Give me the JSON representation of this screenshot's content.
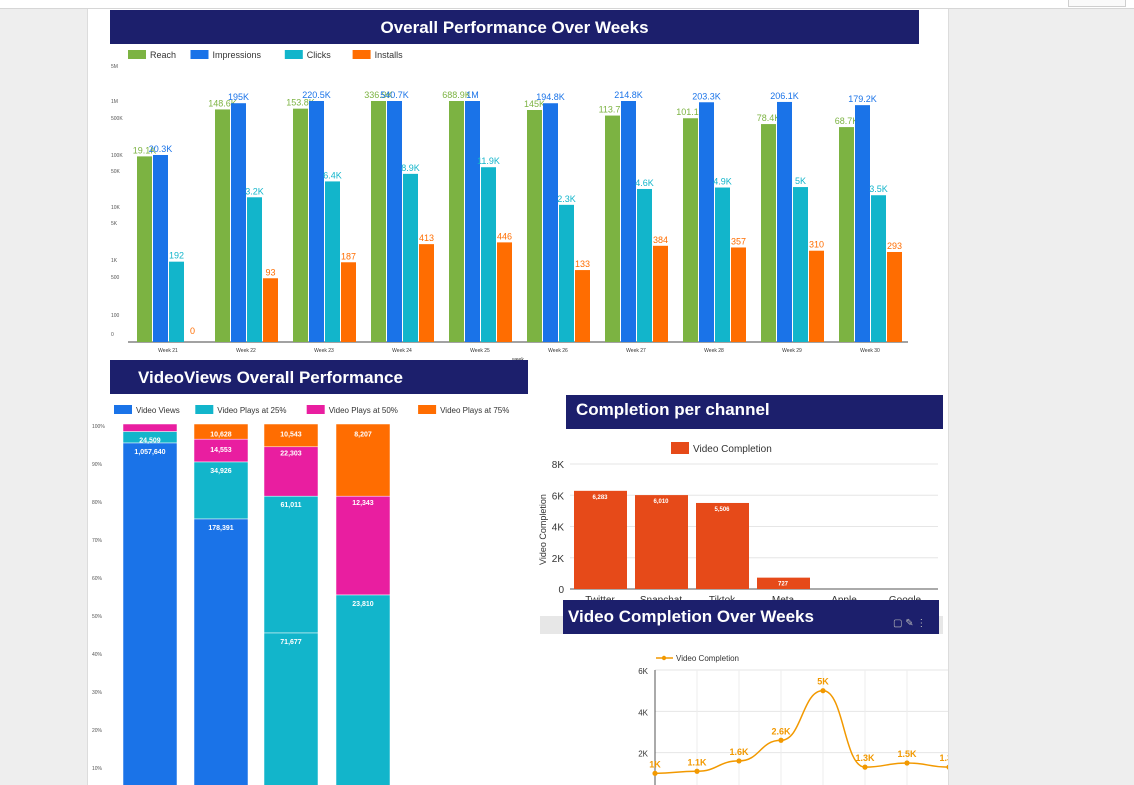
{
  "colors": {
    "header_bg": "#1c1f6c",
    "reach": "#7cb342",
    "impressions": "#1a73e8",
    "clicks": "#12b5cb",
    "installs": "#ff6d01",
    "views": "#1a73e8",
    "p25": "#12b5cb",
    "p50": "#e91ea0",
    "p75": "#ff6d01",
    "completion_bar": "#e64a19",
    "line": "#f29900"
  },
  "chart_data": [
    {
      "type": "bar",
      "title": "Overall Performance Over Weeks",
      "xlabel": "week",
      "scale": "log",
      "y_ticks": [
        "5M",
        "1M",
        "500K",
        "100K",
        "50K",
        "10K",
        "5K",
        "1K",
        "500",
        "100",
        "0"
      ],
      "categories": [
        "Week 21",
        "Week 22",
        "Week 23",
        "Week 24",
        "Week 25",
        "Week 26",
        "Week 27",
        "Week 28",
        "Week 29",
        "Week 30"
      ],
      "series": [
        {
          "name": "Reach",
          "values": [
            19100,
            148600,
            153800,
            336900,
            688900,
            145000,
            113700,
            101100,
            78400,
            68700
          ],
          "labels": [
            "19.1K",
            "148.6K",
            "153.8K",
            "336.9K",
            "688.9K",
            "145K",
            "113.7K",
            "101.1K",
            "78.4K",
            "68.7K"
          ]
        },
        {
          "name": "Impressions",
          "values": [
            20300,
            195000,
            220500,
            540700,
            1000000,
            194800,
            214800,
            203300,
            206100,
            179200
          ],
          "labels": [
            "20.3K",
            "195K",
            "220.5K",
            "540.7K",
            "1M",
            "194.8K",
            "214.8K",
            "203.3K",
            "206.1K",
            "179.2K"
          ]
        },
        {
          "name": "Clicks",
          "values": [
            192,
            3200,
            6400,
            8900,
            11900,
            2300,
            4600,
            4900,
            5000,
            3500
          ],
          "labels": [
            "192",
            "3.2K",
            "6.4K",
            "8.9K",
            "11.9K",
            "2.3K",
            "4.6K",
            "4.9K",
            "5K",
            "3.5K"
          ]
        },
        {
          "name": "Installs",
          "values": [
            0,
            93,
            187,
            413,
            446,
            133,
            384,
            357,
            310,
            293
          ],
          "labels": [
            "0",
            "93",
            "187",
            "413",
            "446",
            "133",
            "384",
            "357",
            "310",
            "293"
          ]
        }
      ]
    },
    {
      "type": "bar",
      "stacked_percent": true,
      "title": "VideoViews Overall Performance",
      "y_ticks": [
        "100%",
        "90%",
        "80%",
        "70%",
        "60%",
        "50%",
        "40%",
        "30%",
        "20%",
        "10%"
      ],
      "legend": [
        "Video Views",
        "Video Plays at 25%",
        "Video Plays at 50%",
        "Video Plays at 75%"
      ],
      "columns": [
        {
          "segments": [
            {
              "series": "Video Views",
              "value": 1057640,
              "label": "1,057,640"
            },
            {
              "series": "Video Plays at 25%",
              "value": 34926,
              "label": "34,926"
            },
            {
              "series": "Video Plays at 50%",
              "value": 6000,
              "label": ""
            },
            {
              "series": "Video Plays at 75%",
              "value": 0,
              "label": ""
            }
          ],
          "overlay": "24,509"
        },
        {
          "segments": [
            {
              "series": "Video Plays at 25%",
              "value": 178391,
              "label": "178,391"
            },
            {
              "series": "Video Plays at 50%",
              "value": 34926,
              "label": "34,926"
            },
            {
              "series": "Video Plays at 75%",
              "value": 14553,
              "label": "14,553"
            },
            {
              "series": "extra",
              "value": 10628,
              "label": "10,628"
            }
          ]
        },
        {
          "segments": [
            {
              "series": "Video Plays at 25%",
              "value": 71677,
              "label": "71,677"
            },
            {
              "series": "Video Plays at 25%b",
              "value": 61011,
              "label": "61,011"
            },
            {
              "series": "Video Plays at 50%",
              "value": 22303,
              "label": "22,303"
            },
            {
              "series": "Video Plays at 75%",
              "value": 10543,
              "label": "10,543"
            }
          ]
        },
        {
          "segments": [
            {
              "series": "Video Plays at 25%",
              "value": 23810,
              "label": "23,810"
            },
            {
              "series": "Video Plays at 50%",
              "value": 12343,
              "label": "12,343"
            },
            {
              "series": "Video Plays at 75%",
              "value": 8207,
              "label": "8,207"
            }
          ]
        }
      ]
    },
    {
      "type": "bar",
      "title": "Completion per channel",
      "ylabel": "Video Completion",
      "legend": "Video Completion",
      "ylim": [
        0,
        8000
      ],
      "y_ticks": [
        "8K",
        "6K",
        "4K",
        "2K",
        "0"
      ],
      "categories": [
        "Twitter",
        "Snapchat",
        "Tiktok",
        "Meta",
        "Apple",
        "Google"
      ],
      "values": [
        6283,
        6010,
        5506,
        727,
        0,
        0
      ],
      "labels": [
        "6,283",
        "6,010",
        "5,506",
        "727",
        "",
        ""
      ]
    },
    {
      "type": "line",
      "title": "Video Completion Over Weeks",
      "legend": "Video Completion",
      "ylim": [
        0,
        6000
      ],
      "y_ticks": [
        "6K",
        "4K",
        "2K",
        "0"
      ],
      "values": [
        1000,
        1100,
        1600,
        2600,
        5000,
        1300,
        1500,
        1300,
        1800,
        1300
      ],
      "labels": [
        "1K",
        "1.1K",
        "1.6K",
        "2.6K",
        "5K",
        "1.3K",
        "1.5K",
        "1.3K",
        "1.8K",
        "1.3K"
      ]
    }
  ]
}
